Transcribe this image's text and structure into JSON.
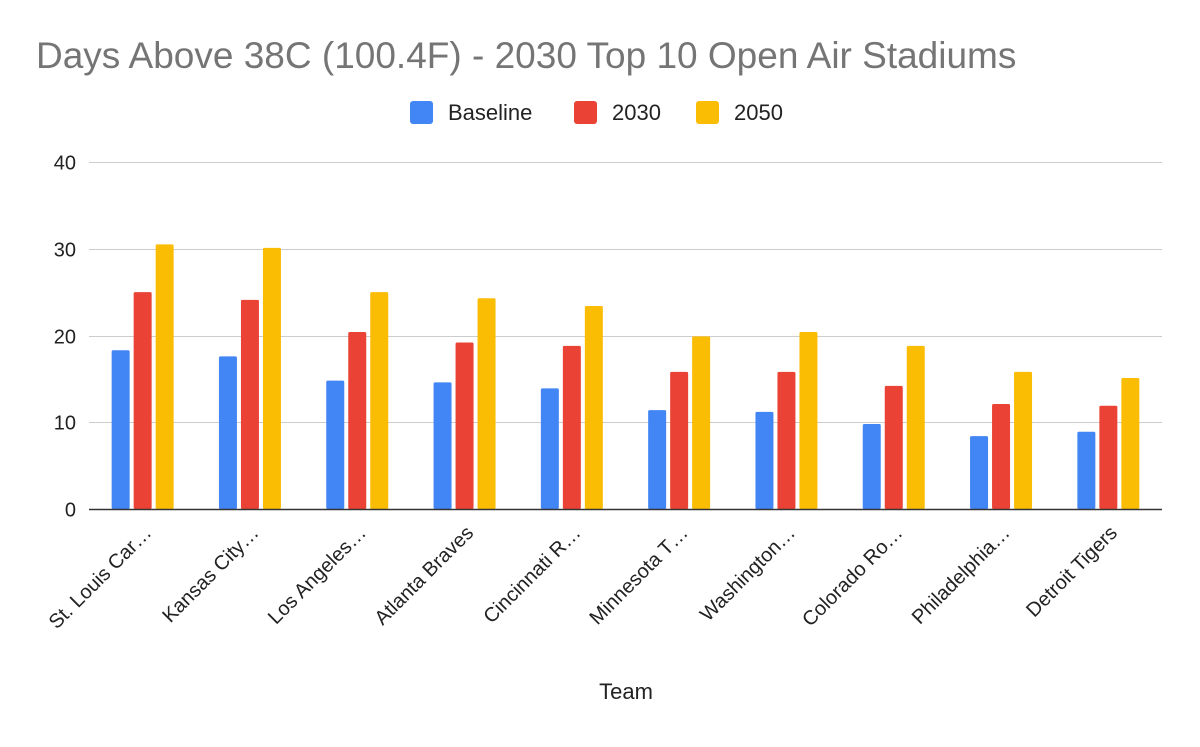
{
  "chart_data": {
    "type": "bar",
    "title": "Days Above 38C (100.4F) - 2030 Top 10 Open Air Stadiums",
    "xlabel": "Team",
    "ylabel": "",
    "ylim": [
      0,
      40
    ],
    "yticks": [
      0,
      10,
      20,
      30,
      40
    ],
    "grid": true,
    "legend_position": "top-center",
    "categories": [
      "St. Louis Car…",
      "Kansas City…",
      "Los Angeles…",
      "Atlanta Braves",
      "Cincinnati R…",
      "Minnesota T…",
      "Washington…",
      "Colorado Ro…",
      "Philadelphia…",
      "Detroit Tigers"
    ],
    "series": [
      {
        "name": "Baseline",
        "color": "#4285f4",
        "values": [
          18.3,
          17.6,
          14.8,
          14.6,
          13.9,
          11.4,
          11.2,
          9.8,
          8.4,
          8.9
        ]
      },
      {
        "name": "2030",
        "color": "#ea4335",
        "values": [
          25.0,
          24.1,
          20.4,
          19.2,
          18.8,
          15.8,
          15.8,
          14.2,
          12.1,
          11.9
        ]
      },
      {
        "name": "2050",
        "color": "#fbbc04",
        "values": [
          30.5,
          30.1,
          25.0,
          24.3,
          23.4,
          19.9,
          20.4,
          18.8,
          15.8,
          15.1
        ]
      }
    ]
  }
}
